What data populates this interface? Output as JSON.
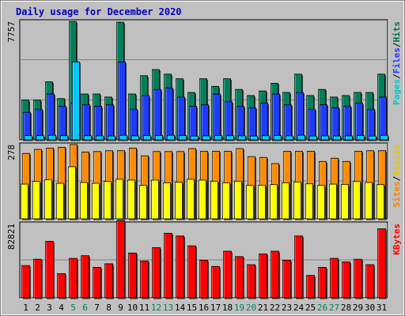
{
  "chart_data": {
    "type": "bar",
    "title": "Daily usage for December 2020",
    "days": [
      "1",
      "2",
      "3",
      "4",
      "5",
      "6",
      "7",
      "8",
      "9",
      "10",
      "11",
      "12",
      "13",
      "14",
      "15",
      "16",
      "17",
      "18",
      "19",
      "20",
      "21",
      "22",
      "23",
      "24",
      "25",
      "26",
      "27",
      "28",
      "29",
      "30",
      "31"
    ],
    "weekend_days": [
      5,
      6,
      12,
      13,
      19,
      20,
      26,
      27
    ],
    "panels": [
      {
        "id": "hits_files_pages",
        "max_label": "7757",
        "ymax": 7757,
        "legend": [
          {
            "label": "Pages",
            "color": "#00c8c8"
          },
          {
            "label": "/",
            "color": "#000000"
          },
          {
            "label": "Files",
            "color": "#1e3cff"
          },
          {
            "label": "/",
            "color": "#000000"
          },
          {
            "label": "Hits",
            "color": "#006e46"
          }
        ],
        "series": [
          {
            "name": "Hits",
            "color": "#00805a",
            "values": [
              2600,
              2600,
              3800,
              2700,
              7750,
              3000,
              3000,
              2800,
              7700,
              3000,
              4200,
              4600,
              4300,
              4000,
              3100,
              4000,
              3500,
              4000,
              3300,
              2900,
              3200,
              3700,
              3100,
              4300,
              2900,
              3300,
              2800,
              2900,
              3100,
              3100,
              4300
            ]
          },
          {
            "name": "Files",
            "color": "#1e3cff",
            "values": [
              1800,
              2000,
              3000,
              2200,
              2400,
              2300,
              2200,
              2300,
              5100,
              2000,
              2900,
              3300,
              3400,
              2800,
              2200,
              2300,
              3000,
              2500,
              2200,
              2100,
              2400,
              3000,
              2300,
              3100,
              2000,
              2300,
              2100,
              2200,
              2400,
              2000,
              2800
            ]
          },
          {
            "name": "Pages",
            "color": "#00c8ff",
            "values": [
              280,
              280,
              300,
              270,
              5100,
              270,
              260,
              250,
              300,
              260,
              280,
              290,
              300,
              280,
              250,
              260,
              280,
              270,
              260,
              250,
              270,
              280,
              260,
              300,
              250,
              260,
              250,
              260,
              280,
              250,
              300
            ]
          }
        ]
      },
      {
        "id": "visits_sites",
        "max_label": "278",
        "ymax": 278,
        "legend": [
          {
            "label": "Sites",
            "color": "#ff8000"
          },
          {
            "label": "/",
            "color": "#000000"
          },
          {
            "label": "Visits",
            "color": "#e6c800"
          }
        ],
        "series": [
          {
            "name": "Visits",
            "color": "#ff8c00",
            "values": [
              245,
              260,
              265,
              268,
              278,
              250,
              252,
              255,
              255,
              265,
              236,
              252,
              252,
              252,
              263,
              253,
              253,
              253,
              263,
              233,
              230,
              207,
              253,
              253,
              253,
              215,
              227,
              215,
              253,
              255,
              255
            ]
          },
          {
            "name": "Sites",
            "color": "#ffff00",
            "values": [
              130,
              140,
              146,
              133,
              195,
              136,
              133,
              140,
              148,
              145,
              125,
              145,
              135,
              137,
              148,
              145,
              140,
              135,
              141,
              125,
              126,
              128,
              135,
              138,
              131,
              125,
              130,
              129,
              140,
              136,
              128
            ]
          }
        ]
      },
      {
        "id": "kbytes",
        "max_label": "82821",
        "ymax": 82821,
        "legend": [
          {
            "label": "KBytes",
            "color": "#ff0000"
          }
        ],
        "series": [
          {
            "name": "KBytes",
            "color": "#ff0000",
            "values": [
              36000,
              43000,
              63000,
              27000,
              44000,
              47000,
              34000,
              38000,
              86000,
              50000,
              41000,
              56000,
              72000,
              69000,
              58000,
              42000,
              35000,
              52000,
              46000,
              37000,
              49000,
              52000,
              42000,
              69000,
              25000,
              34000,
              44000,
              40000,
              43000,
              37000,
              77000
            ]
          }
        ]
      }
    ]
  }
}
